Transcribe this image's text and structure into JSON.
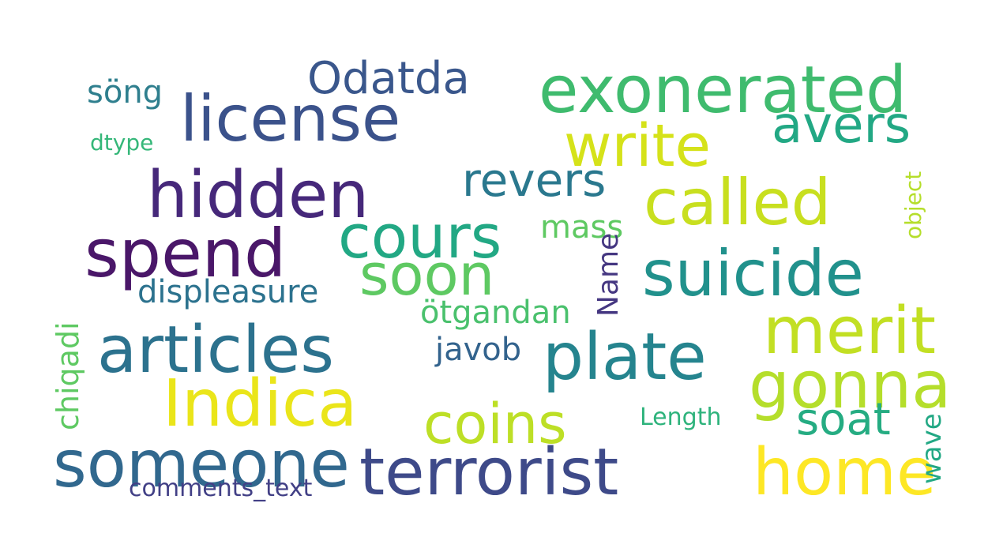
{
  "wordcloud": {
    "words": [
      {
        "text": "exonerated",
        "color": "#3fbb6e"
      },
      {
        "text": "license",
        "color": "#3b528b"
      },
      {
        "text": "Odatda",
        "color": "#3a578c"
      },
      {
        "text": "söng",
        "color": "#2f7f8e"
      },
      {
        "text": "write",
        "color": "#d5e21a"
      },
      {
        "text": "avers",
        "color": "#22a884"
      },
      {
        "text": "dtype",
        "color": "#35b779"
      },
      {
        "text": "hidden",
        "color": "#46287a"
      },
      {
        "text": "revers",
        "color": "#2a788e"
      },
      {
        "text": "called",
        "color": "#c8df1f"
      },
      {
        "text": "spend",
        "color": "#4a1769"
      },
      {
        "text": "cours",
        "color": "#22a884"
      },
      {
        "text": "mass",
        "color": "#5ec962"
      },
      {
        "text": "soon",
        "color": "#5ec962"
      },
      {
        "text": "suicide",
        "color": "#21918c"
      },
      {
        "text": "displeasure",
        "color": "#2c728e"
      },
      {
        "text": "ötgandan",
        "color": "#4ac16d"
      },
      {
        "text": "articles",
        "color": "#2c728e"
      },
      {
        "text": "merit",
        "color": "#c2df23"
      },
      {
        "text": "plate",
        "color": "#25848e"
      },
      {
        "text": "javob",
        "color": "#33638d"
      },
      {
        "text": "gonna",
        "color": "#b5de2b"
      },
      {
        "text": "Indica",
        "color": "#eae51a"
      },
      {
        "text": "coins",
        "color": "#bddf26"
      },
      {
        "text": "Length",
        "color": "#2eb37c"
      },
      {
        "text": "soat",
        "color": "#25ac82"
      },
      {
        "text": "someone",
        "color": "#31688e"
      },
      {
        "text": "terrorist",
        "color": "#3e4a89"
      },
      {
        "text": "home",
        "color": "#fde725"
      },
      {
        "text": "comments_text",
        "color": "#424086"
      }
    ],
    "vertical_words": [
      {
        "text": "chiqadi",
        "color": "#5ec962"
      },
      {
        "text": "Name",
        "color": "#453781"
      },
      {
        "text": "object",
        "color": "#b5de2b"
      },
      {
        "text": "wave",
        "color": "#22a884"
      }
    ]
  }
}
